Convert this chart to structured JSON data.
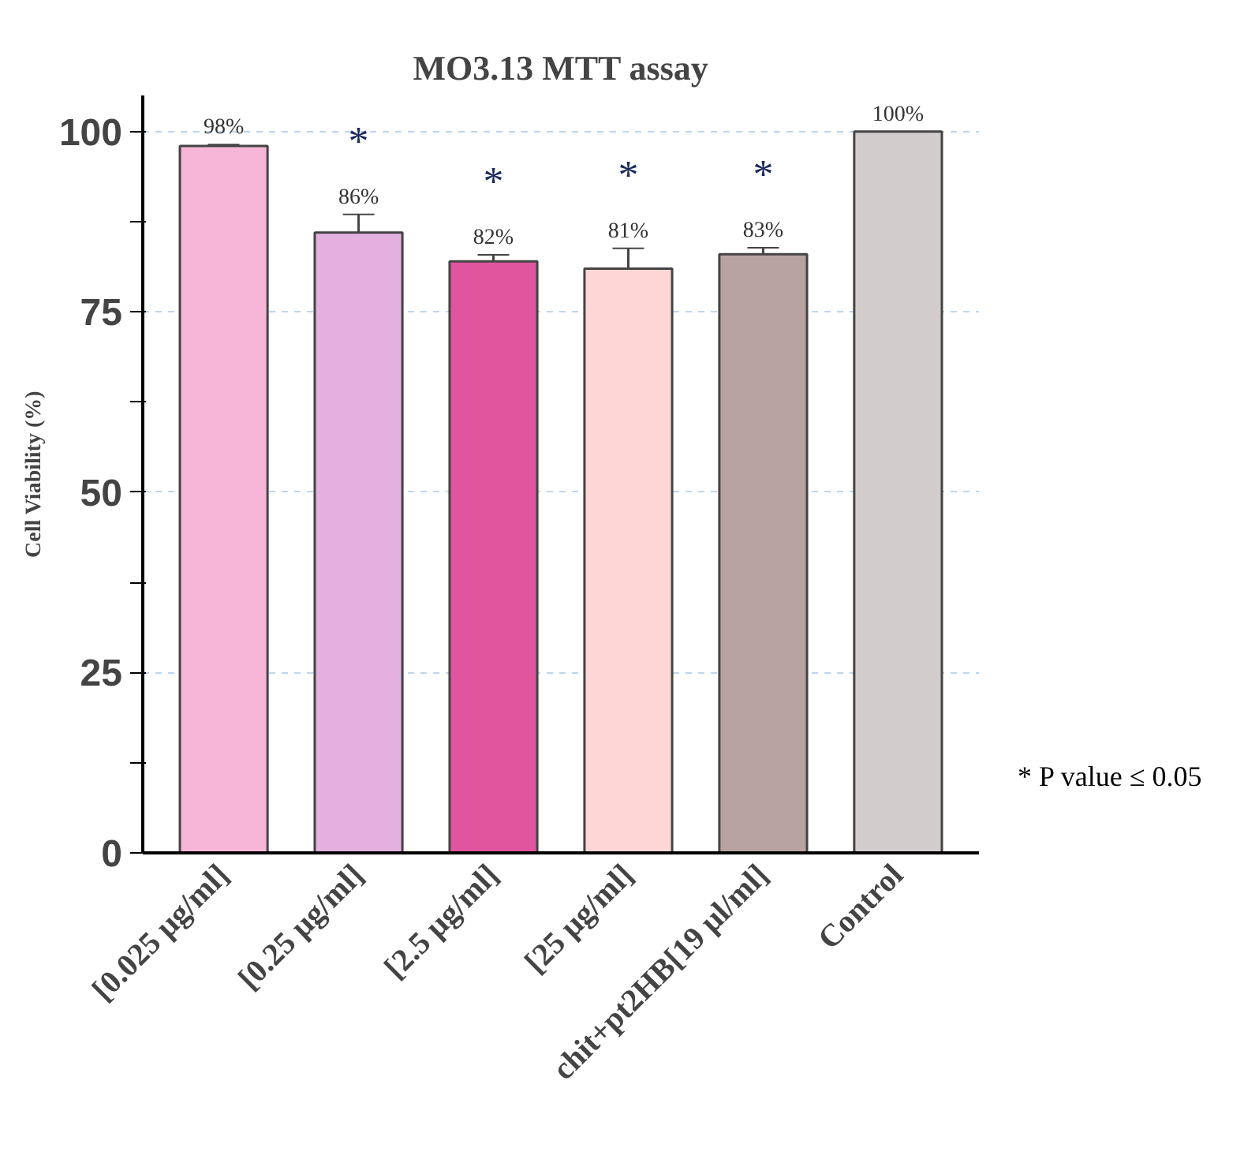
{
  "chart_data": {
    "type": "bar",
    "title": "MO3.13 MTT assay",
    "ylabel": "Cell Viability (%)",
    "categories": [
      "[0.025 μg/ml]",
      "[0.25 μg/ml]",
      "[2.5 μg/ml]",
      "[25 μg/ml]",
      "chit+pt2HB[19 μl/ml]",
      "Control"
    ],
    "values": [
      98,
      86,
      82,
      81,
      83,
      100
    ],
    "colors": [
      "#f7b6d8",
      "#e3b0e0",
      "#e0559e",
      "#ffd6d6",
      "#b8a2a2",
      "#d3cccc"
    ],
    "errors": [
      0.2,
      2.5,
      0.9,
      2.8,
      0.9,
      null
    ],
    "value_labels": [
      "98%",
      "86%",
      "82%",
      "81%",
      "83%",
      "100%"
    ],
    "ylim": [
      0,
      105
    ],
    "yticks": [
      0,
      {
        "value": 12.5,
        "label": null
      },
      25,
      {
        "value": 37.5,
        "label": null
      },
      50,
      {
        "value": 62.5,
        "label": null
      },
      75,
      {
        "value": 87.5,
        "label": null
      },
      100
    ],
    "grid": "y",
    "annotations": [
      "*",
      "*",
      "*",
      "*",
      "* P value ≤ 0.05"
    ]
  }
}
